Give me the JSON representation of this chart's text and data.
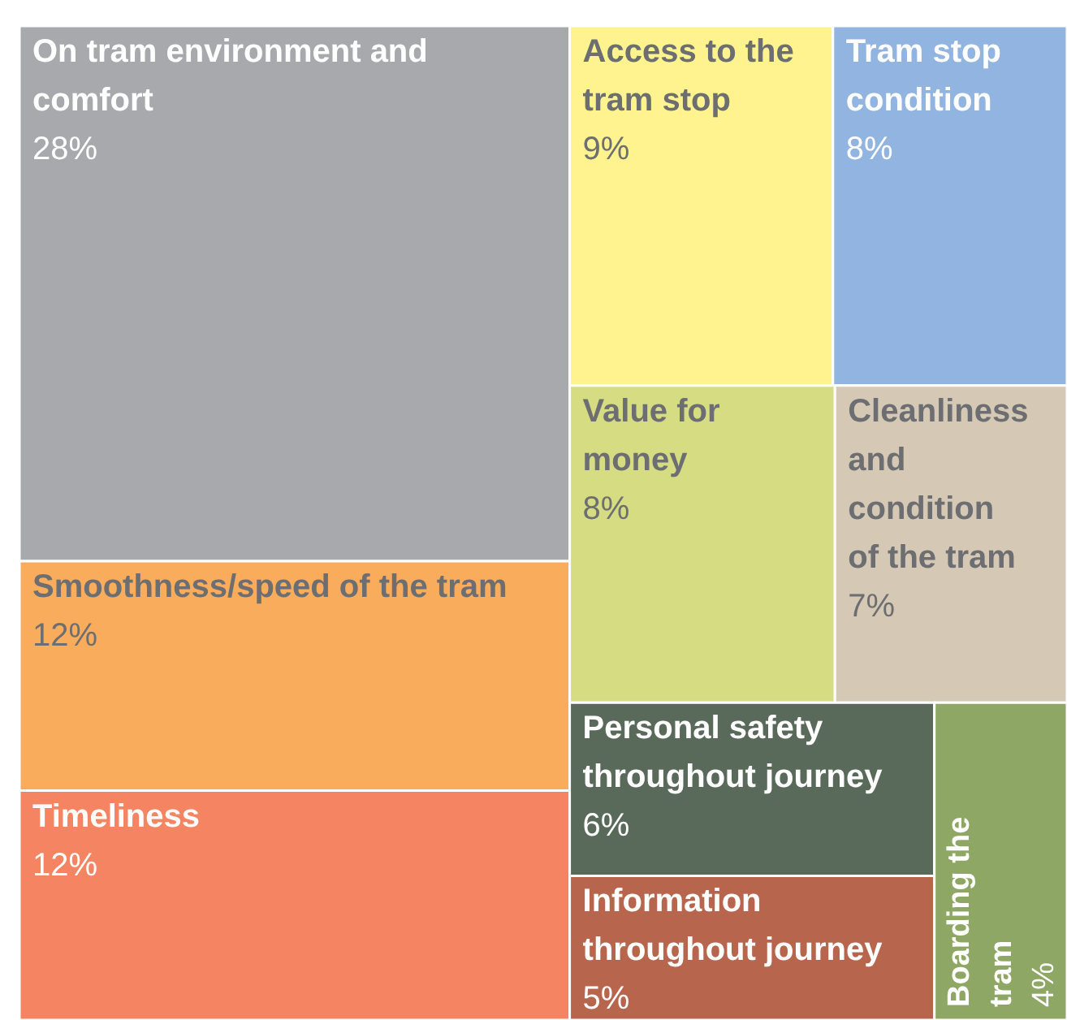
{
  "chart_data": {
    "type": "other",
    "categories": [
      "On tram environment and comfort",
      "Smoothness/speed of the tram",
      "Timeliness",
      "Access to the tram stop",
      "Tram stop condition",
      "Value for money",
      "Cleanliness and condition of the tram",
      "Personal safety throughout journey",
      "Information throughout journey",
      "Boarding the tram"
    ],
    "values": [
      28,
      12,
      12,
      9,
      8,
      8,
      7,
      6,
      5,
      4
    ],
    "value_labels": [
      "28%",
      "12%",
      "12%",
      "9%",
      "8%",
      "8%",
      "7%",
      "6%",
      "5%",
      "4%"
    ],
    "colors": [
      "#a7a9ac",
      "#f9ac5c",
      "#f48462",
      "#fff38f",
      "#92b4e0",
      "#d6dc82",
      "#d5c9b6",
      "#59695a",
      "#b7654c",
      "#8fa764"
    ]
  }
}
